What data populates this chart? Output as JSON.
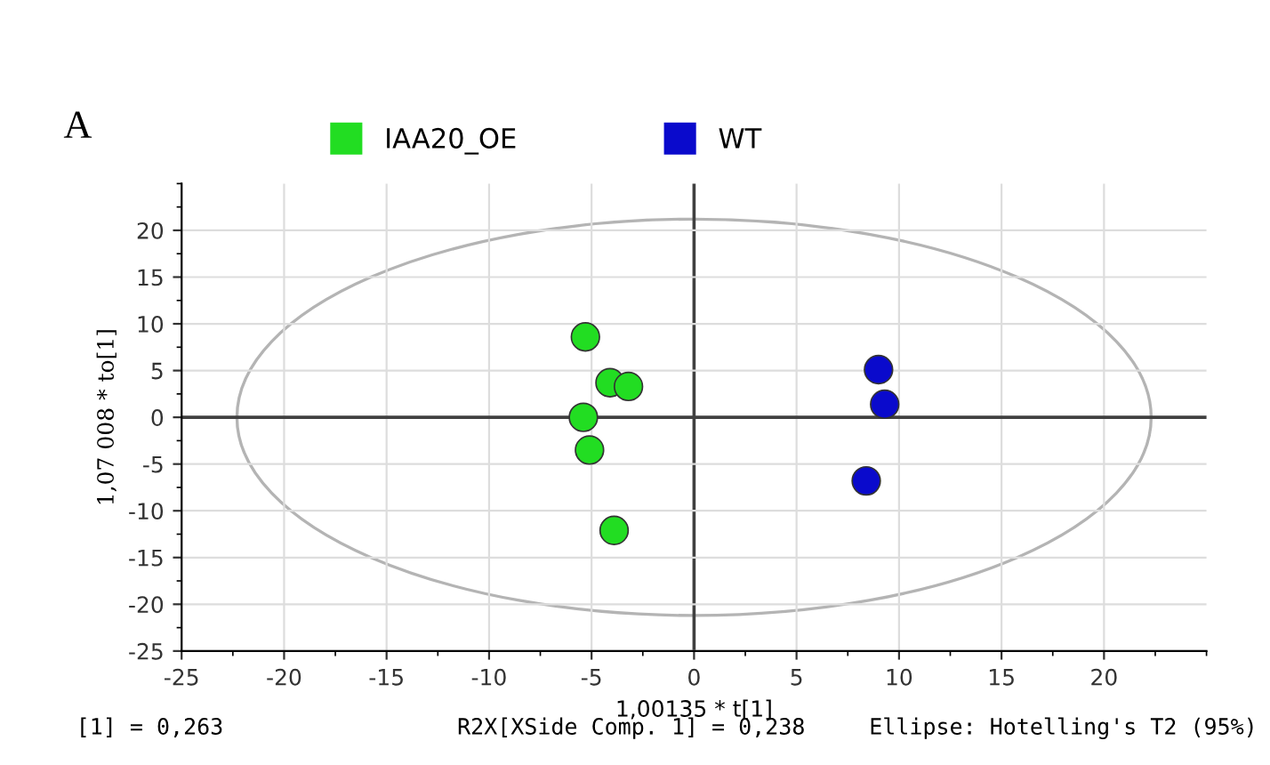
{
  "chart_data": {
    "type": "scatter",
    "xlabel": "1,00135 * t[1]",
    "ylabel": "1,07 008 * to[1]",
    "series": [
      {
        "name": "IAA20_OE",
        "color": "#22dd22",
        "x": [
          -5.3,
          -4.1,
          -3.2,
          -5.4,
          -5.1,
          -3.9
        ],
        "values": [
          8.6,
          3.7,
          3.3,
          0,
          -3.5,
          -12.1
        ]
      },
      {
        "name": "WT",
        "color": "#0a0acc",
        "x": [
          9.0,
          9.3,
          8.4
        ],
        "values": [
          5.1,
          1.4,
          -6.8
        ]
      }
    ],
    "xlim": [
      -25,
      25
    ],
    "ylim": [
      -25,
      25
    ],
    "xticks": [
      -25,
      -20,
      -15,
      -10,
      -5,
      0,
      5,
      10,
      15,
      20
    ],
    "yticks": [
      -25,
      -20,
      -15,
      -10,
      -5,
      0,
      5,
      10,
      15,
      20
    ],
    "annotations": [
      "A",
      "[1] = 0,263",
      "R2X[XSide Comp. 1] = 0,238",
      "Ellipse: Hotelling's T2 (95%)"
    ],
    "grid": true,
    "legend": "top",
    "marker": "circle"
  }
}
